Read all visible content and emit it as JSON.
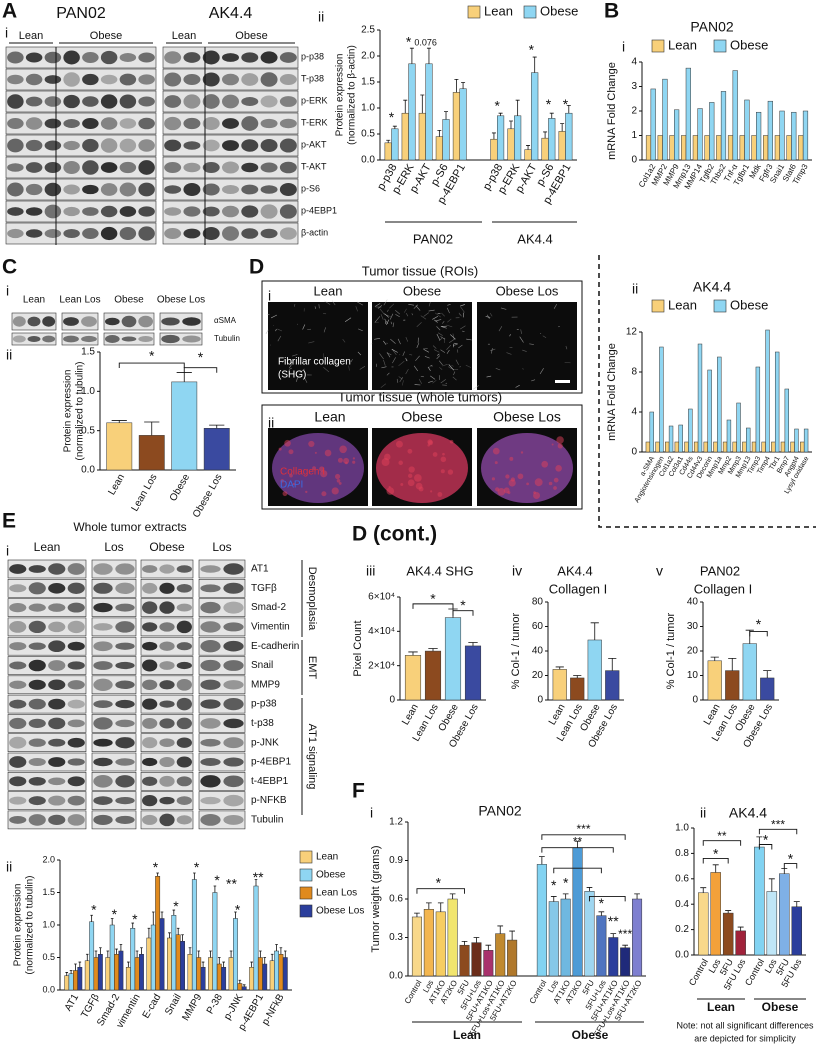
{
  "A": {
    "letter": "A",
    "i": {
      "label": "i",
      "blots": [
        {
          "title": "PAN02",
          "groups": [
            "Lean",
            "Obese"
          ]
        },
        {
          "title": "AK4.4",
          "groups": [
            "Lean",
            "Obese"
          ]
        }
      ],
      "bands": [
        "p-p38",
        "T-p38",
        "p-ERK",
        "T-ERK",
        "p-AKT",
        "T-AKT",
        "p-S6",
        "p-4EBP1",
        "β-actin"
      ]
    },
    "ii": {
      "label": "ii",
      "chart": {
        "type": "bar",
        "ylabel": [
          "Protein expression",
          "(normalized to β-actin)"
        ],
        "ylim": [
          0,
          2.5
        ],
        "yticks": [
          {
            "value": 0,
            "label": "0.0"
          },
          0.5,
          {
            "value": 1,
            "label": "1.0"
          },
          1.5,
          {
            "value": 2,
            "label": "2.0"
          },
          2.5
        ],
        "categories": [
          "p-p38",
          "p-ERK",
          "p-AKT",
          "p-S6",
          "p-4EBP1",
          "p-p38",
          "p-ERK",
          "p-AKT",
          "p-S6",
          "p-4EBP1"
        ],
        "groups": [
          "PAN02",
          "AK4.4"
        ],
        "series": [
          {
            "name": "Lean",
            "color": "#f8d07a",
            "values": [
              0.33,
              0.9,
              0.9,
              0.45,
              1.3,
              0.4,
              0.6,
              0.2,
              0.42,
              0.55
            ],
            "errors": [
              0.05,
              0.25,
              0.35,
              0.12,
              0.25,
              0.12,
              0.15,
              0.08,
              0.12,
              0.15
            ]
          },
          {
            "name": "Obese",
            "color": "#8fd6f2",
            "values": [
              0.6,
              1.85,
              1.85,
              0.78,
              1.37,
              0.85,
              0.85,
              1.68,
              0.8,
              0.9
            ],
            "errors": [
              0.05,
              0.3,
              0.3,
              0.15,
              0.12,
              0.05,
              0.3,
              0.3,
              0.1,
              0.15
            ]
          }
        ],
        "annotations": [
          "*",
          "*",
          "0.076",
          "*",
          "*",
          "*",
          "*"
        ]
      }
    }
  },
  "B": {
    "letter": "B",
    "i": {
      "label": "i",
      "chart": {
        "type": "bar",
        "title": "PAN02",
        "ylabel": "mRNA Fold Change",
        "ylim": [
          0,
          4
        ],
        "yticks": [
          0,
          1,
          2,
          3,
          4
        ],
        "categories": [
          "Col1a2",
          "MMP2",
          "MMP9",
          "Mmp13",
          "MMP14",
          "Tgfb2",
          "Thbs2",
          "Tnf-α",
          "Tgfbr1",
          "Mdk",
          "Fgfr3",
          "Snai1",
          "Stat6",
          "Timp3"
        ],
        "series": [
          {
            "name": "Lean",
            "color": "#f8d07a",
            "values": [
              1,
              1,
              1,
              1,
              1,
              1,
              1,
              1,
              1,
              1,
              1,
              1,
              1,
              1
            ]
          },
          {
            "name": "Obese",
            "color": "#8fd6f2",
            "values": [
              2.9,
              3.3,
              2.05,
              3.75,
              2.1,
              2.35,
              2.8,
              3.65,
              2.45,
              1.95,
              2.4,
              2.0,
              1.95,
              2.0
            ]
          }
        ]
      }
    },
    "ii": {
      "label": "ii",
      "chart": {
        "type": "bar",
        "title": "AK4.4",
        "ylabel": "mRNA Fold Change",
        "ylim": [
          0,
          12
        ],
        "yticks": [
          0,
          4,
          8,
          12
        ],
        "categories": [
          "a-SMA",
          "Angiotensinogen",
          "Col1a2",
          "Col3a1",
          "Cd44s",
          "Cd44v3",
          "Decorin",
          "Mmp1a",
          "Mmp2",
          "Mmp3",
          "Mmp13",
          "Timp3",
          "Timp4",
          "Tbr1",
          "Bmp7",
          "Angpt4",
          "Lysyl oxidase"
        ],
        "series": [
          {
            "name": "Lean",
            "color": "#f8d07a",
            "values": [
              1,
              1,
              1,
              1,
              1,
              1,
              1,
              1,
              1,
              1,
              1,
              1,
              1,
              1,
              1,
              1,
              1
            ]
          },
          {
            "name": "Obese",
            "color": "#8fd6f2",
            "values": [
              4.0,
              10.5,
              2.6,
              2.7,
              4.3,
              10.8,
              8.2,
              9.5,
              3.2,
              4.9,
              2.4,
              8.5,
              12.2,
              10.0,
              6.3,
              2.3,
              2.3
            ]
          }
        ]
      }
    }
  },
  "C": {
    "letter": "C",
    "i": {
      "label": "i",
      "groups": [
        "Lean",
        "Lean Los",
        "Obese",
        "Obese Los"
      ],
      "bands": [
        "αSMA",
        "Tubulin"
      ]
    },
    "ii": {
      "label": "ii",
      "chart": {
        "type": "bar",
        "ylabel": [
          "Protein expression",
          "(normalized to tubulin)"
        ],
        "ylim": [
          0,
          1.5
        ],
        "yticks": [
          {
            "value": 0,
            "label": "0.0"
          },
          0.5,
          {
            "value": 1,
            "label": "1.0"
          },
          1.5
        ],
        "categories": [
          "Lean",
          "Lean Los",
          "Obese",
          "Obese Los"
        ],
        "values": [
          0.6,
          0.44,
          1.12,
          0.53
        ],
        "errors": [
          0.03,
          0.17,
          0.12,
          0.04
        ],
        "colors": [
          "#f8d07a",
          "#8c4a1f",
          "#8fd6f2",
          "#3a4aa0"
        ],
        "annotations": [
          "*",
          "*"
        ]
      }
    }
  },
  "D": {
    "letter": "D",
    "i": {
      "label": "i",
      "title": "Tumor tissue (ROIs)",
      "images": [
        "Lean",
        "Obese",
        "Obese Los"
      ],
      "stain": [
        "Fibrillar collagen",
        "(SHG)"
      ]
    },
    "ii": {
      "label": "ii",
      "title": "Tumor tissue (whole tumors)",
      "images": [
        "Lean",
        "Obese",
        "Obese Los"
      ],
      "stains": [
        "Collagen I",
        "DAPI"
      ]
    }
  },
  "E": {
    "letter": "E",
    "i": {
      "label": "i",
      "title": "Whole tumor extracts",
      "groups": [
        "Lean",
        "Los",
        "Obese",
        "Los"
      ],
      "bands": [
        "AT1",
        "TGFβ",
        "Smad-2",
        "Vimentin",
        "E-cadherin",
        "Snail",
        "MMP9",
        "p-p38",
        "t-p38",
        "p-JNK",
        "p-4EBP1",
        "t-4EBP1",
        "p-NFKB",
        "Tubulin"
      ],
      "sections": [
        "Desmoplasia",
        "EMT",
        "AT1 signaling"
      ]
    },
    "ii": {
      "label": "ii",
      "chart": {
        "type": "bar",
        "ylabel": [
          "Protein expression",
          "(normalized to tubulin)"
        ],
        "ylim": [
          0,
          2
        ],
        "yticks": [
          {
            "value": 0,
            "label": "0.0"
          },
          0.5,
          {
            "value": 1,
            "label": "1.0"
          },
          1.5,
          {
            "value": 2,
            "label": "2.0"
          }
        ],
        "categories": [
          "AT1",
          "TGFβ",
          "Smad-2",
          "vimentin",
          "E-cad",
          "Snail",
          "MMP9",
          "P-38",
          "p-JNK",
          "p-4EBP1",
          "p-NFkB"
        ],
        "series": [
          {
            "name": "Lean",
            "color": "#f8d07a",
            "values": [
              0.22,
              0.45,
              0.5,
              0.35,
              0.8,
              0.8,
              0.55,
              0.5,
              0.5,
              0.35,
              0.45
            ],
            "errors": [
              0.05,
              0.1,
              0.1,
              0.08,
              0.15,
              0.08,
              0.1,
              0.1,
              0.1,
              0.08,
              0.1
            ]
          },
          {
            "name": "Obese",
            "color": "#8fd6f2",
            "values": [
              0.25,
              1.05,
              1.0,
              0.95,
              1.0,
              1.15,
              1.7,
              1.5,
              1.1,
              1.6,
              0.6
            ],
            "errors": [
              0.05,
              0.1,
              0.1,
              0.08,
              0.2,
              0.08,
              0.1,
              0.1,
              0.1,
              0.1,
              0.1
            ]
          },
          {
            "name": "Lean Los",
            "color": "#e08a1e",
            "values": [
              0.3,
              0.5,
              0.55,
              0.5,
              1.75,
              0.85,
              0.5,
              0.4,
              0.1,
              0.5,
              0.55
            ],
            "errors": [
              0.1,
              0.1,
              0.08,
              0.1,
              0.05,
              0.1,
              0.1,
              0.1,
              0.05,
              0.1,
              0.1
            ]
          },
          {
            "name": "Obese Los",
            "color": "#2b3e9c",
            "values": [
              0.35,
              0.55,
              0.6,
              0.55,
              1.1,
              0.75,
              0.35,
              0.35,
              0.05,
              0.4,
              0.5
            ],
            "errors": [
              0.08,
              0.1,
              0.1,
              0.1,
              0.1,
              0.1,
              0.08,
              0.08,
              0.03,
              0.1,
              0.1
            ]
          }
        ],
        "annotations": [
          "*",
          "*",
          "*",
          "*",
          "*",
          "*",
          "*",
          "**",
          "*",
          "**"
        ]
      }
    }
  },
  "Dcont": {
    "letter": "D (cont.)",
    "iii": {
      "label": "iii",
      "chart": {
        "type": "bar",
        "title": "AK4.4  SHG",
        "ylabel": "Pixel Count",
        "ylim": [
          0,
          60000
        ],
        "yticks": [
          0,
          {
            "value": 20000,
            "label": "2×10⁴"
          },
          {
            "value": 40000,
            "label": "4×10⁴"
          },
          {
            "value": 60000,
            "label": "6×10⁴"
          }
        ],
        "categories": [
          "Lean",
          "Lean Los",
          "Obese",
          "Obese Los"
        ],
        "values": [
          26000,
          28500,
          48000,
          31500
        ],
        "errors": [
          2000,
          1500,
          5000,
          2000
        ],
        "colors": [
          "#f8d07a",
          "#8c4a1f",
          "#8fd6f2",
          "#3a4aa0"
        ],
        "annotations": [
          "*",
          "*"
        ]
      }
    },
    "iv": {
      "label": "iv",
      "chart": {
        "type": "bar",
        "title": "AK4.4",
        "subtitle": "Collagen I",
        "ylabel": "% Col-1 / tumor",
        "ylim": [
          0,
          80
        ],
        "yticks": [
          0,
          20,
          40,
          60,
          80
        ],
        "categories": [
          "Lean",
          "Lean Los",
          "Obese",
          "Obese Los"
        ],
        "values": [
          25,
          18,
          49,
          24
        ],
        "errors": [
          2,
          2,
          14,
          10
        ],
        "colors": [
          "#f8d07a",
          "#8c4a1f",
          "#8fd6f2",
          "#3a4aa0"
        ]
      }
    },
    "v": {
      "label": "v",
      "chart": {
        "type": "bar",
        "title": "PAN02",
        "subtitle": "Collagen I",
        "ylabel": "% Col-1 / tumor",
        "ylim": [
          0,
          40
        ],
        "yticks": [
          0,
          10,
          20,
          30,
          40
        ],
        "categories": [
          "Lean",
          "Lean Los",
          "Obese",
          "Obese Los"
        ],
        "values": [
          16,
          12,
          23,
          9
        ],
        "errors": [
          1.5,
          5,
          5.5,
          3
        ],
        "colors": [
          "#f8d07a",
          "#8c4a1f",
          "#8fd6f2",
          "#3a4aa0"
        ],
        "annotations": [
          "*"
        ]
      }
    }
  },
  "F": {
    "letter": "F",
    "i": {
      "label": "i",
      "chart": {
        "type": "bar",
        "title": "PAN02",
        "ylabel": "Tumor weight (grams)",
        "ylim": [
          0,
          1.2
        ],
        "yticks": [
          {
            "value": 0,
            "label": "0.0"
          },
          0.3,
          0.6,
          0.9,
          1.2
        ],
        "categories": [
          "Control",
          "Los",
          "AT1KO",
          "AT2KO",
          "5FU",
          "5FU+Los",
          "5FU+AT1KO",
          "5FU+Los+AT1KO",
          "5FU+AT2KO",
          "Control",
          "Los",
          "AT1KO",
          "AT2KO",
          "5FU",
          "5FU+Los",
          "5FU+AT1KO",
          "5FU+Los+AT1KO",
          "5FU+AT2KO"
        ],
        "groups": [
          "Lean",
          "Obese"
        ],
        "values": [
          0.46,
          0.52,
          0.5,
          0.6,
          0.24,
          0.26,
          0.2,
          0.33,
          0.28,
          0.87,
          0.58,
          0.6,
          1.0,
          0.66,
          0.47,
          0.3,
          0.22,
          0.6
        ],
        "errors": [
          0.03,
          0.05,
          0.07,
          0.04,
          0.03,
          0.04,
          0.04,
          0.06,
          0.07,
          0.06,
          0.04,
          0.04,
          0.05,
          0.03,
          0.03,
          0.03,
          0.02,
          0.04
        ],
        "colors": [
          "#f8d88a",
          "#f3b64f",
          "#f6cd62",
          "#f1e56e",
          "#8c4a1f",
          "#6b2d1a",
          "#a8326c",
          "#c0892f",
          "#b0782b",
          "#82d3f2",
          "#86c8e8",
          "#6fb8e0",
          "#4d9bd6",
          "#9fd6f0",
          "#4f74c0",
          "#2b3e9c",
          "#1f2a7a",
          "#7e7fd0"
        ],
        "annotations": [
          "*",
          "*",
          "*",
          "*",
          "**",
          "***",
          "***",
          "**"
        ]
      }
    },
    "ii": {
      "label": "ii",
      "chart": {
        "type": "bar",
        "title": "AK4.4",
        "ylim": [
          0,
          1
        ],
        "yticks": [
          {
            "value": 0,
            "label": "0.0"
          },
          0.2,
          0.4,
          0.6,
          0.8,
          {
            "value": 1,
            "label": "1.0"
          }
        ],
        "categories": [
          "Control",
          "Los",
          "5FU",
          "5FU Los",
          "Control",
          "Los",
          "5FU",
          "5FU los"
        ],
        "groups": [
          "Lean",
          "Obese"
        ],
        "values": [
          0.49,
          0.65,
          0.33,
          0.19,
          0.85,
          0.5,
          0.64,
          0.38
        ],
        "errors": [
          0.04,
          0.06,
          0.02,
          0.03,
          0.08,
          0.1,
          0.04,
          0.04
        ],
        "colors": [
          "#f8d88a",
          "#f3a13a",
          "#8c4a1f",
          "#a0223a",
          "#82d3f2",
          "#bfe6f7",
          "#7fb0e6",
          "#2b3e9c"
        ],
        "annotations": [
          "**",
          "*",
          "***",
          "*",
          "*"
        ]
      },
      "note": [
        "Note: not all significant differences",
        "are depicted for simplicity"
      ]
    }
  }
}
